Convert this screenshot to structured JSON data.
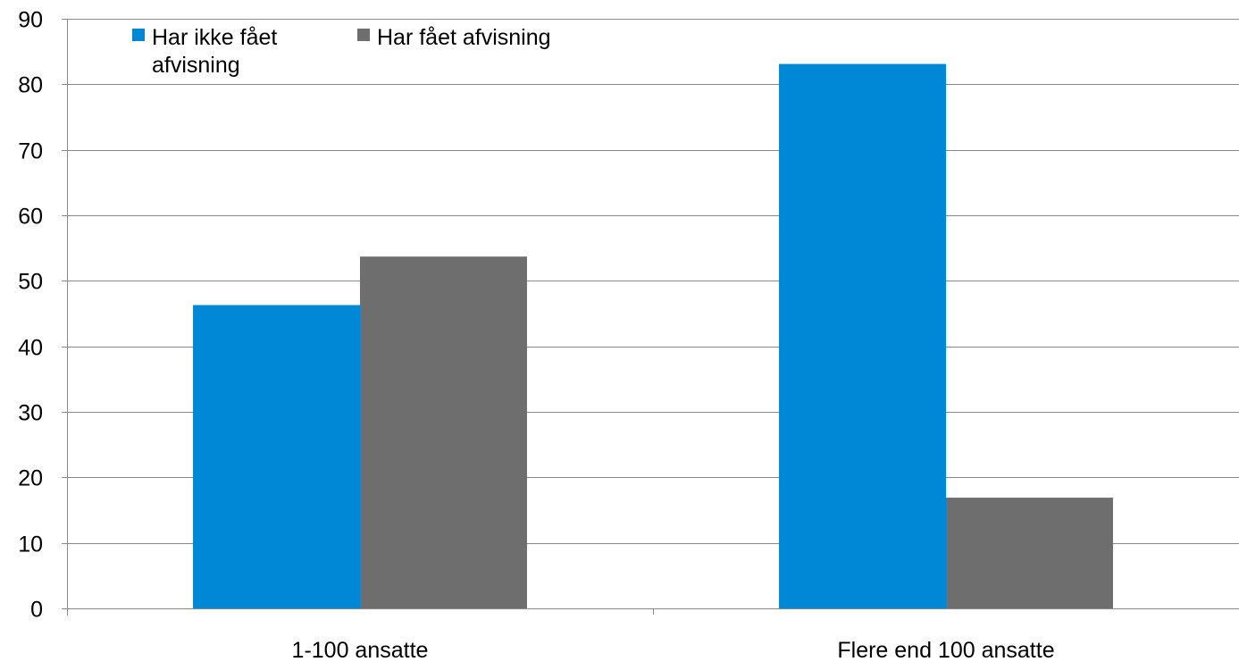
{
  "chart_data": {
    "type": "bar",
    "categories": [
      "1-100 ansatte",
      "Flere end 100 ansatte"
    ],
    "series": [
      {
        "name": "Har ikke fået afvisning",
        "name_lines": [
          "Har ikke fået",
          "afvisning"
        ],
        "values": [
          46.3,
          83.1
        ],
        "color": "#0088d6"
      },
      {
        "name": "Har fået afvisning",
        "name_lines": [
          "Har fået afvisning"
        ],
        "values": [
          53.7,
          16.9
        ],
        "color": "#6e6e6e"
      }
    ],
    "ylim": [
      0,
      90
    ],
    "yticks": [
      "0",
      "10",
      "20",
      "30",
      "40",
      "50",
      "60",
      "70",
      "80",
      "90"
    ],
    "grid": true,
    "legend_position": "top-left",
    "title": "",
    "xlabel": "",
    "ylabel": ""
  }
}
